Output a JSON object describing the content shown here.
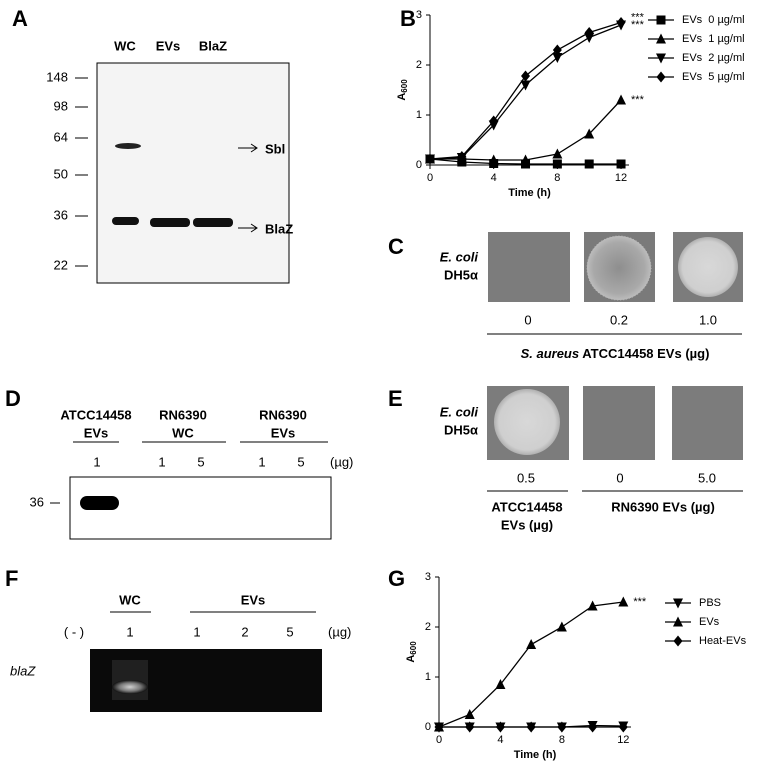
{
  "chart_data": [
    {
      "type": "line",
      "ylabel": "A",
      "ylabel_subscript": "600",
      "xlabel": "Time (h)",
      "x": [
        0,
        2,
        4,
        6,
        8,
        10,
        12
      ],
      "xlim": [
        0,
        12.5
      ],
      "xticks": [
        0,
        4,
        8,
        12
      ],
      "ylim": [
        0,
        3
      ],
      "yticks": [
        0,
        1,
        2,
        3
      ],
      "series": [
        {
          "name": "EVs  0 µg/ml",
          "marker": "square",
          "color": "#000000",
          "values": [
            0.12,
            0.06,
            0.03,
            0.02,
            0.02,
            0.02,
            0.02
          ]
        },
        {
          "name": "EVs  1 µg/ml",
          "marker": "triangle-up",
          "color": "#000000",
          "values": [
            0.12,
            0.12,
            0.1,
            0.1,
            0.22,
            0.62,
            1.3
          ],
          "annotation": "***"
        },
        {
          "name": "EVs  2 µg/ml",
          "marker": "triangle-down",
          "color": "#000000",
          "values": [
            0.12,
            0.15,
            0.8,
            1.6,
            2.15,
            2.55,
            2.8
          ],
          "annotation": "***"
        },
        {
          "name": "EVs  5 µg/ml",
          "marker": "diamond",
          "color": "#000000",
          "values": [
            0.12,
            0.17,
            0.88,
            1.78,
            2.3,
            2.65,
            2.85
          ],
          "annotation": "***"
        }
      ]
    },
    {
      "type": "line",
      "ylabel": "A",
      "ylabel_subscript": "600",
      "xlabel": "Time (h)",
      "x": [
        0,
        2,
        4,
        6,
        8,
        10,
        12
      ],
      "xlim": [
        0,
        12.5
      ],
      "xticks": [
        0,
        4,
        8,
        12
      ],
      "ylim": [
        0,
        3
      ],
      "yticks": [
        0,
        1,
        2,
        3
      ],
      "series": [
        {
          "name": "PBS",
          "marker": "triangle-down",
          "color": "#000000",
          "values": [
            0,
            0,
            0,
            0,
            0,
            0.03,
            0.02
          ]
        },
        {
          "name": "EVs",
          "marker": "triangle-up",
          "color": "#000000",
          "values": [
            0,
            0.25,
            0.85,
            1.65,
            2.0,
            2.42,
            2.5
          ],
          "annotation": "***"
        },
        {
          "name": "Heat-EVs",
          "marker": "diamond",
          "color": "#000000",
          "values": [
            0,
            0,
            0,
            0,
            0,
            0,
            0
          ]
        }
      ]
    }
  ],
  "panels": {
    "A": {
      "letter": "A",
      "lanes": [
        "WC",
        "EVs",
        "BlaZ"
      ],
      "markers": [
        148,
        98,
        64,
        50,
        36,
        22
      ],
      "bands": [
        "Sbl",
        "BlaZ"
      ]
    },
    "B": {
      "letter": "B"
    },
    "C": {
      "letter": "C",
      "strain": "E. coli",
      "strain_id": "DH5α",
      "doses": [
        "0",
        "0.2",
        "1.0"
      ],
      "caption_species": "S. aureus",
      "caption_rest": " ATCC14458 EVs (µg)"
    },
    "D": {
      "letter": "D",
      "groups": [
        [
          "ATCC14458",
          "EVs"
        ],
        [
          "RN6390",
          "WC"
        ],
        [
          "RN6390",
          "EVs"
        ]
      ],
      "doses": [
        "1",
        "1",
        "5",
        "1",
        "5"
      ],
      "unit": "(µg)",
      "marker": "36"
    },
    "E": {
      "letter": "E",
      "strain": "E. coli",
      "strain_id": "DH5α",
      "doses": [
        "0.5",
        "0",
        "5.0"
      ],
      "caption_left": [
        "ATCC14458",
        "EVs (µg)"
      ],
      "caption_right": "RN6390 EVs (µg)"
    },
    "F": {
      "letter": "F",
      "groups": [
        "WC",
        "EVs"
      ],
      "lanes": [
        "( - )",
        "1",
        "1",
        "2",
        "5"
      ],
      "unit": "(µg)",
      "gene": "blaZ"
    },
    "G": {
      "letter": "G"
    }
  }
}
